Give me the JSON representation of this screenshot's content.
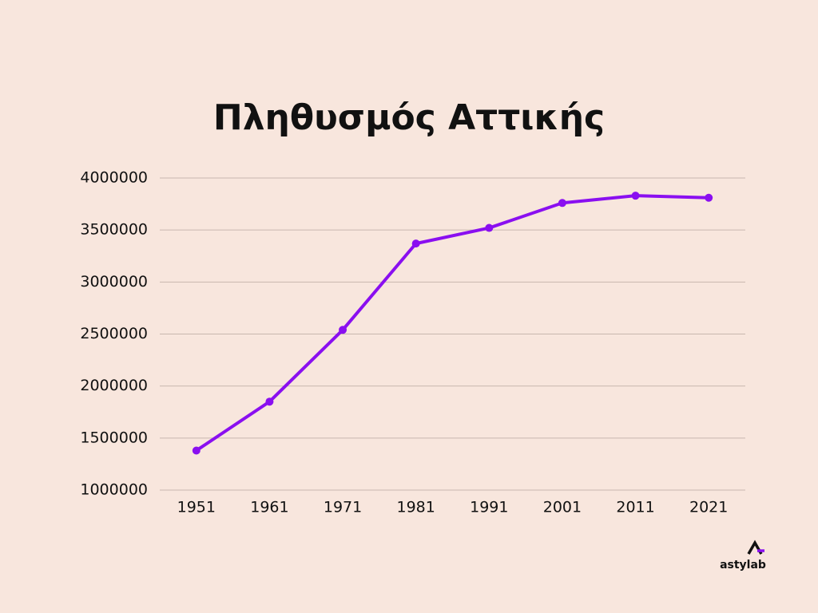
{
  "chart_data": {
    "type": "line",
    "title": "Πληθυσμός Αττικής",
    "categories": [
      "1951",
      "1961",
      "1971",
      "1981",
      "1991",
      "2001",
      "2011",
      "2021"
    ],
    "series": [
      {
        "name": "Πληθυσμός",
        "color": "#8a0ff0",
        "values": [
          1380000,
          1850000,
          2540000,
          3370000,
          3520000,
          3760000,
          3830000,
          3810000
        ]
      }
    ],
    "ylim": [
      1000000,
      4000000
    ],
    "yticks": [
      1000000,
      1500000,
      2000000,
      2500000,
      3000000,
      3500000,
      4000000
    ],
    "grid": true,
    "logo": "astylab"
  }
}
